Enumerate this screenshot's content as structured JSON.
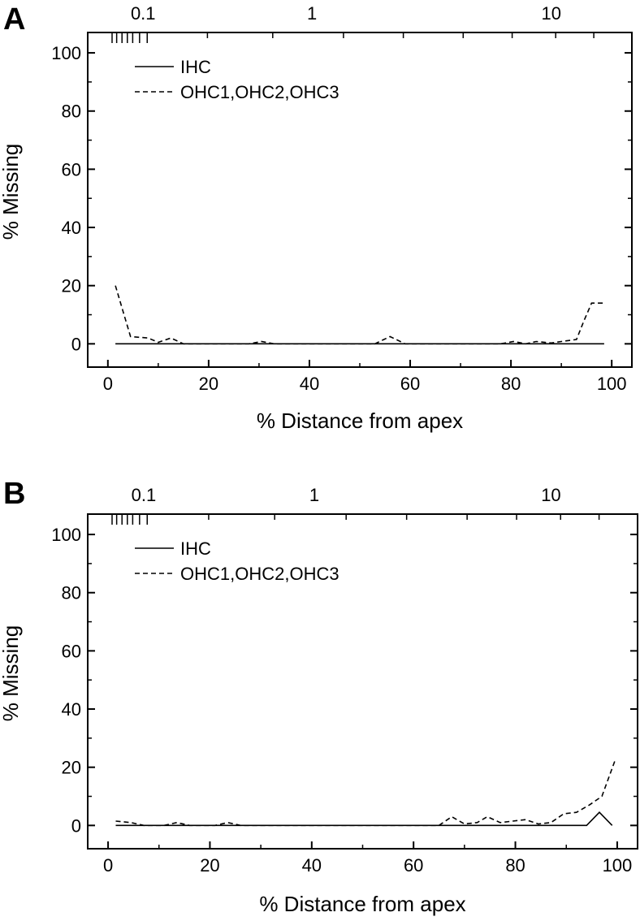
{
  "chart_data": [
    {
      "panel_label": "A",
      "type": "line",
      "xlabel": "% Distance from apex",
      "ylabel": "% Missing",
      "xlim": [
        -4,
        104
      ],
      "ylim": [
        -8,
        107
      ],
      "x_ticks": [
        0,
        20,
        40,
        60,
        80,
        100
      ],
      "y_ticks": [
        0,
        20,
        40,
        60,
        80,
        100
      ],
      "top_axis_labels": [
        {
          "label": "0.1",
          "x": 7
        },
        {
          "label": "1",
          "x": 40.5
        },
        {
          "label": "10",
          "x": 88
        }
      ],
      "legend": {
        "position": "top-left"
      },
      "series": [
        {
          "name": "IHC",
          "style": "solid",
          "x": [
            1.5,
            98.5
          ],
          "y": [
            0,
            0
          ]
        },
        {
          "name": "OHC1,OHC2,OHC3",
          "style": "dashed",
          "x": [
            1.5,
            4.5,
            8,
            10,
            12.5,
            15,
            28,
            30.5,
            33,
            53,
            56,
            59,
            78,
            80.5,
            83,
            85,
            88,
            90,
            93,
            94.5,
            96,
            98.5
          ],
          "y": [
            20,
            2.5,
            2,
            0.5,
            2,
            0,
            0,
            0.8,
            0,
            0,
            2.5,
            0,
            0,
            0.8,
            0,
            0.8,
            0.3,
            0.8,
            1.5,
            8,
            14,
            14
          ]
        }
      ]
    },
    {
      "panel_label": "B",
      "type": "line",
      "xlabel": "% Distance from apex",
      "ylabel": "% Missing",
      "xlim": [
        -4,
        104
      ],
      "ylim": [
        -8,
        107
      ],
      "x_ticks": [
        0,
        20,
        40,
        60,
        80,
        100
      ],
      "y_ticks": [
        0,
        20,
        40,
        60,
        80,
        100
      ],
      "top_axis_labels": [
        {
          "label": "0.1",
          "x": 7
        },
        {
          "label": "1",
          "x": 40.5
        },
        {
          "label": "10",
          "x": 87
        }
      ],
      "legend": {
        "position": "top-left"
      },
      "series": [
        {
          "name": "IHC",
          "style": "solid",
          "x": [
            1.5,
            94,
            96.5,
            99
          ],
          "y": [
            0,
            0,
            4.5,
            0
          ]
        },
        {
          "name": "OHC1,OHC2,OHC3",
          "style": "dashed",
          "x": [
            1.5,
            4.5,
            7,
            11,
            13.5,
            16,
            21,
            23.5,
            26,
            65,
            67.5,
            70,
            72.5,
            74.5,
            77,
            79.5,
            82,
            84.5,
            87,
            89.5,
            92,
            94.5,
            97,
            99.5
          ],
          "y": [
            1.5,
            1,
            0,
            0,
            1,
            0,
            0,
            1,
            0,
            0,
            3,
            0.5,
            1,
            3,
            1,
            1.5,
            2,
            0.5,
            1,
            4,
            4.5,
            7,
            10,
            22
          ]
        }
      ]
    }
  ]
}
